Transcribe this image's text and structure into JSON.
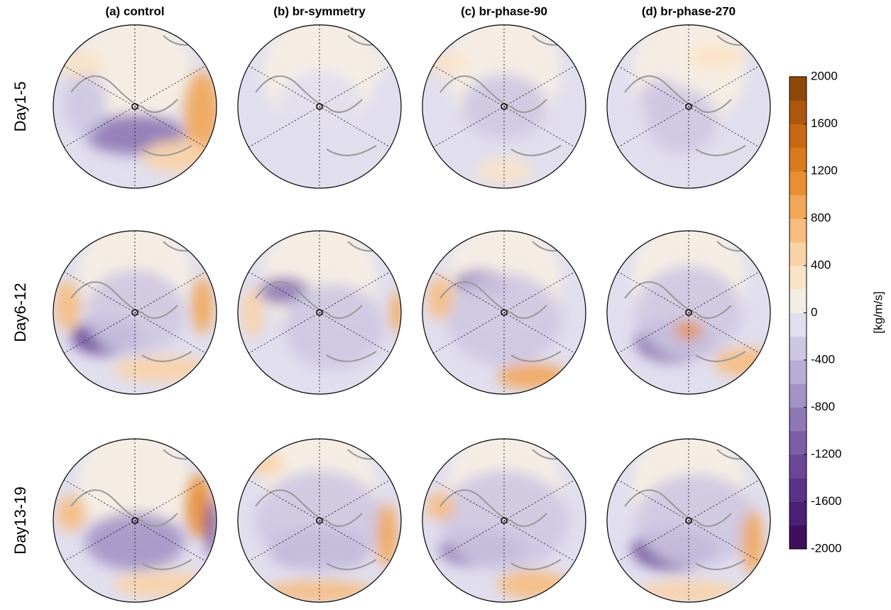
{
  "figure": {
    "columns": [
      "(a) control",
      "(b) br-symmetry",
      "(c) br-phase-90",
      "(d) br-phase-270"
    ],
    "rows": [
      "Day1-5",
      "Day6-12",
      "Day13-19"
    ],
    "colorbar": {
      "label": "[kg/m/s]",
      "lim": [
        -2000,
        2000
      ],
      "ticks": [
        2000,
        1600,
        1200,
        800,
        400,
        0,
        -400,
        -800,
        -1200,
        -1600,
        -2000
      ],
      "colors": [
        "#3f0f5e",
        "#4b1f74",
        "#5a3287",
        "#6a4797",
        "#7b5ea6",
        "#8e77b5",
        "#a393c5",
        "#b8add4",
        "#cdc7e2",
        "#e1deee",
        "#f5ede4",
        "#fbe3c8",
        "#fbd3a6",
        "#f7bd7e",
        "#f2a657",
        "#e88f34",
        "#d97a1d",
        "#c66912",
        "#ad580d",
        "#8f470a"
      ]
    }
  }
}
